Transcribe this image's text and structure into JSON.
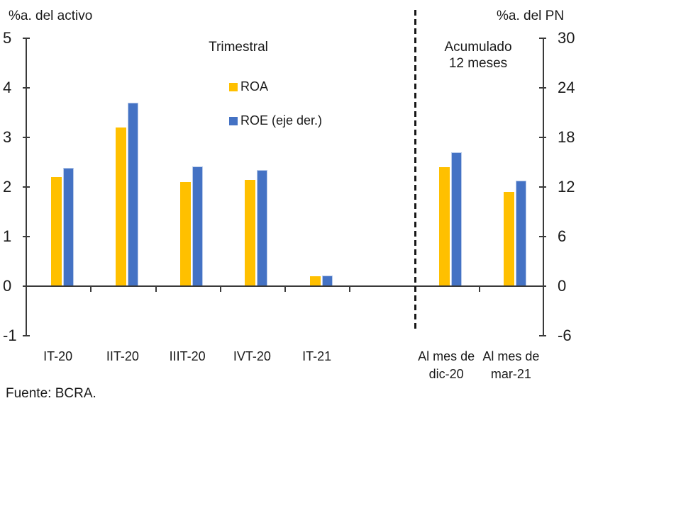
{
  "titles": {
    "left_axis_unit": "%a. del activo",
    "right_axis_unit": "%a. del PN"
  },
  "sections": {
    "left_label": "Trimestral",
    "right_label_line1": "Acumulado",
    "right_label_line2": "12 meses"
  },
  "legend": {
    "items": [
      {
        "label": "ROA",
        "color": "#FFC000"
      },
      {
        "label": "ROE (eje der.)",
        "color": "#4472C4"
      }
    ]
  },
  "source": {
    "text": "Fuente: BCRA."
  },
  "chart_data": {
    "type": "bar",
    "dual_axis": true,
    "title": "",
    "left_axis": {
      "title": "%a. del activo",
      "min": -1,
      "max": 5,
      "ticks": [
        5,
        4,
        3,
        2,
        1,
        0,
        -1
      ]
    },
    "right_axis": {
      "title": "%a. del PN",
      "min": -6,
      "max": 30,
      "ticks": [
        30,
        24,
        18,
        12,
        6,
        0,
        -6
      ]
    },
    "categories": [
      {
        "label": "IT-20",
        "label2": "",
        "slot": 0
      },
      {
        "label": "IIT-20",
        "label2": "",
        "slot": 1
      },
      {
        "label": "IIIT-20",
        "label2": "",
        "slot": 2
      },
      {
        "label": "IVT-20",
        "label2": "",
        "slot": 3
      },
      {
        "label": "IT-21",
        "label2": "",
        "slot": 4
      },
      {
        "label": "Al mes de",
        "label2": "dic-20",
        "slot": 6
      },
      {
        "label": "Al mes de",
        "label2": "mar-21",
        "slot": 7
      }
    ],
    "series": [
      {
        "name": "ROA",
        "axis": "left",
        "color": "#FFC000",
        "values": [
          2.2,
          3.2,
          2.1,
          2.15,
          0.2,
          2.4,
          1.9
        ]
      },
      {
        "name": "ROE (eje der.)",
        "axis": "right",
        "color": "#4472C4",
        "values": [
          14.3,
          22.2,
          14.5,
          14.1,
          1.3,
          16.2,
          12.8
        ]
      }
    ],
    "separator": {
      "style": "dashed-vertical-line",
      "after_slot": 6,
      "left_section": "Trimestral",
      "right_section": "Acumulado 12 meses"
    },
    "grid": false,
    "legend_position": "upper-left-panel",
    "total_slots": 8
  }
}
